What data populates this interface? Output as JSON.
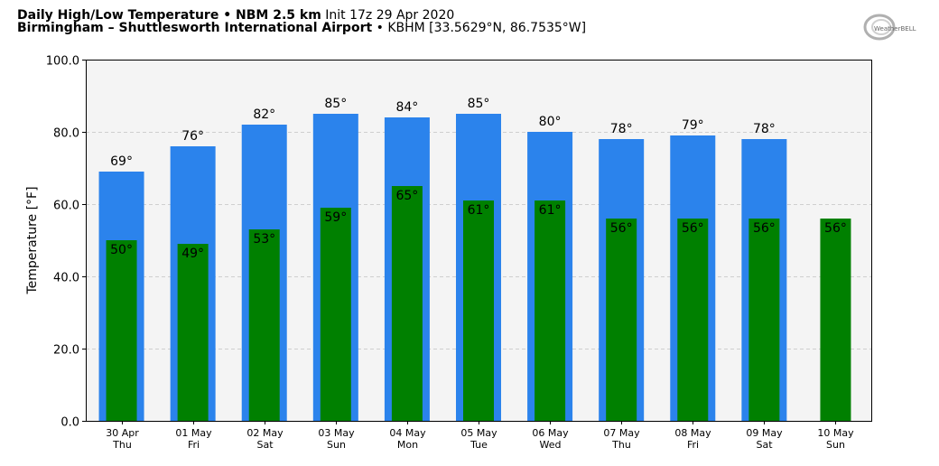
{
  "header": {
    "line1_bold": "Daily High/Low Temperature • NBM 2.5 km",
    "line1_normal": " Init 17z 29 Apr 2020",
    "line2_bold": "Birmingham – Shuttlesworth International Airport",
    "line2_normal": " • KBHM [33.5629°N, 86.7535°W]",
    "logo_text": "WeatherBELL"
  },
  "chart_data": {
    "type": "bar",
    "ylabel": "Temperature [°F]",
    "ylim": [
      0,
      100
    ],
    "yticks": [
      "0.0",
      "20.0",
      "40.0",
      "60.0",
      "80.0",
      "100.0"
    ],
    "grid": true,
    "categories": [
      {
        "date": "30 Apr",
        "day": "Thu"
      },
      {
        "date": "01 May",
        "day": "Fri"
      },
      {
        "date": "02 May",
        "day": "Sat"
      },
      {
        "date": "03 May",
        "day": "Sun"
      },
      {
        "date": "04 May",
        "day": "Mon"
      },
      {
        "date": "05 May",
        "day": "Tue"
      },
      {
        "date": "06 May",
        "day": "Wed"
      },
      {
        "date": "07 May",
        "day": "Thu"
      },
      {
        "date": "08 May",
        "day": "Fri"
      },
      {
        "date": "09 May",
        "day": "Sat"
      },
      {
        "date": "10 May",
        "day": "Sun"
      }
    ],
    "series": [
      {
        "values": [
          69,
          76,
          82,
          85,
          84,
          85,
          80,
          78,
          79,
          78,
          null
        ],
        "color": "#2b83ec"
      },
      {
        "values": [
          50,
          49,
          53,
          59,
          65,
          61,
          61,
          56,
          56,
          56,
          56
        ],
        "color": "#008000"
      }
    ],
    "high_labels": [
      "69°",
      "76°",
      "82°",
      "85°",
      "84°",
      "85°",
      "80°",
      "78°",
      "79°",
      "78°",
      ""
    ],
    "low_labels": [
      "50°",
      "49°",
      "53°",
      "59°",
      "65°",
      "61°",
      "61°",
      "56°",
      "56°",
      "56°",
      "56°"
    ],
    "plot_background": "#f4f4f4"
  }
}
